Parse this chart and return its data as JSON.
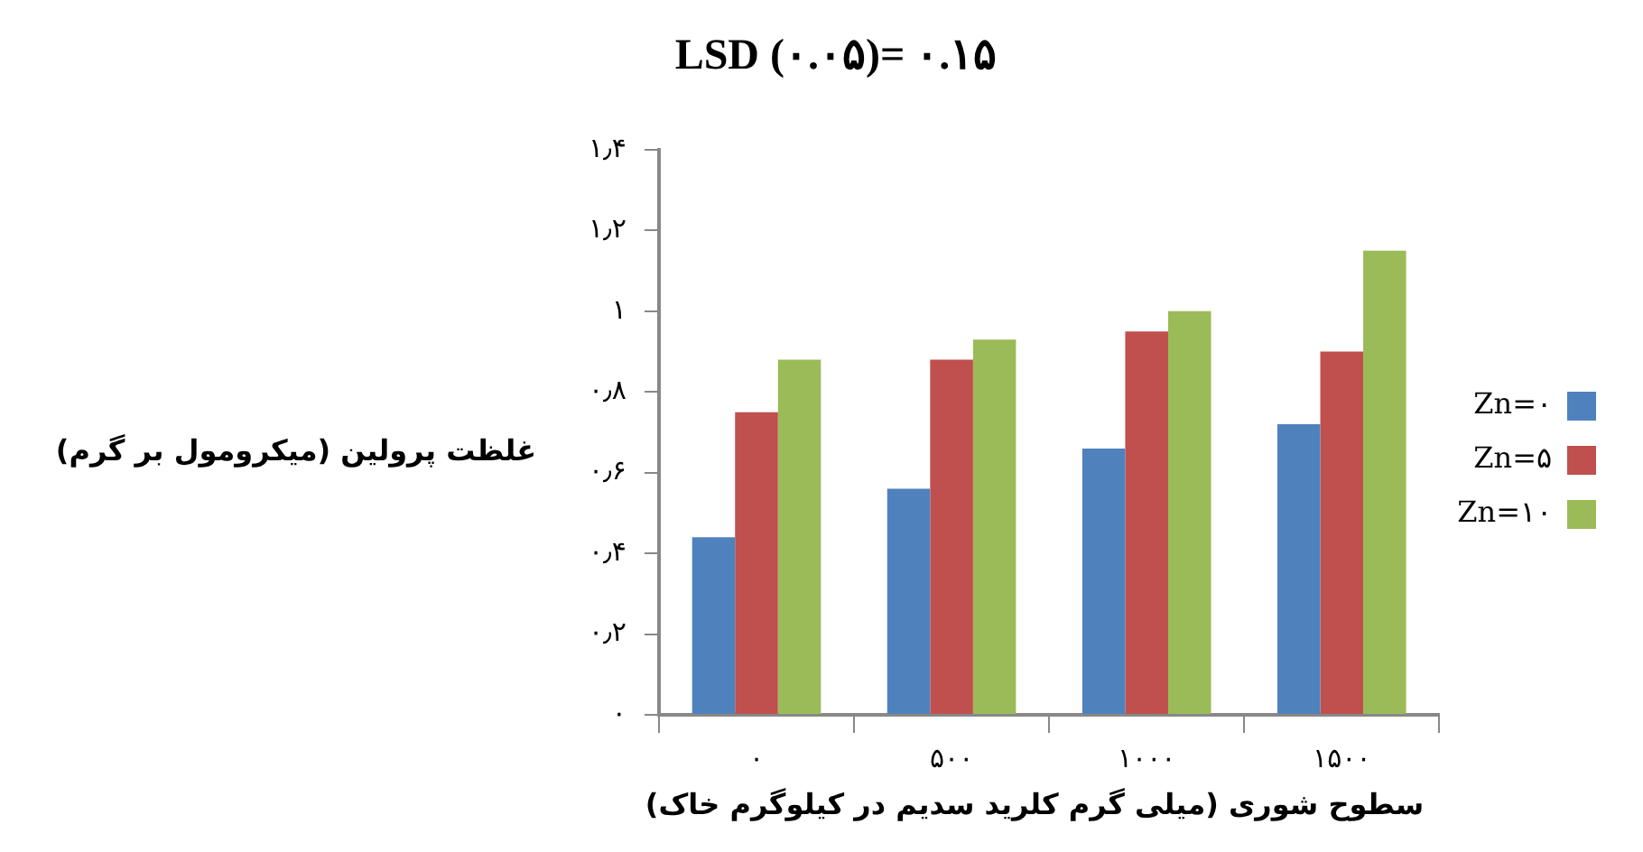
{
  "chart_data": {
    "type": "bar",
    "title": "LSD (۰.۰۵)= ۰.۱۵",
    "xlabel": "سطوح شوری (میلی گرم کلرید سدیم در کیلوگرم خاک)",
    "ylabel": "غلظت پرولین (میکرومول بر گرم)",
    "categories": [
      "۰",
      "۵۰۰",
      "۱۰۰۰",
      "۱۵۰۰"
    ],
    "series": [
      {
        "name": "Zn=۰",
        "color": "#4f81bd",
        "values": [
          0.44,
          0.56,
          0.66,
          0.72
        ]
      },
      {
        "name": "Zn=۵",
        "color": "#c0504d",
        "values": [
          0.75,
          0.88,
          0.95,
          0.9
        ]
      },
      {
        "name": "Zn=۱۰",
        "color": "#9bbb59",
        "values": [
          0.88,
          0.93,
          1.0,
          1.15
        ]
      }
    ],
    "ylim": [
      0,
      1.4
    ],
    "yticks": [
      {
        "value": 0,
        "label": "۰"
      },
      {
        "value": 0.2,
        "label": "۰٫۲"
      },
      {
        "value": 0.4,
        "label": "۰٫۴"
      },
      {
        "value": 0.6,
        "label": "۰٫۶"
      },
      {
        "value": 0.8,
        "label": "۰٫۸"
      },
      {
        "value": 1,
        "label": "۱"
      },
      {
        "value": 1.2,
        "label": "۱٫۲"
      },
      {
        "value": 1.4,
        "label": "۱٫۴"
      }
    ],
    "legend": "right"
  }
}
